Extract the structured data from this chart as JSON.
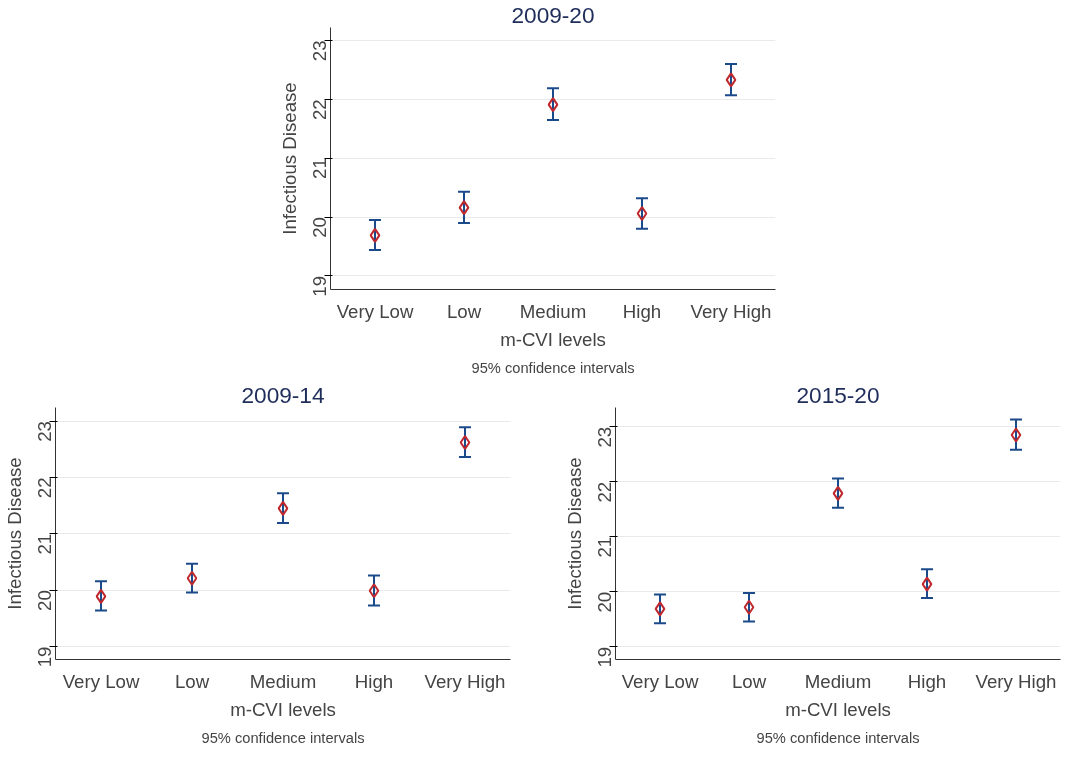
{
  "chart_data": [
    {
      "type": "scatter",
      "title": "2009-20",
      "xlabel": "m-CVI levels",
      "ylabel": "Infectious Disease",
      "annotations": [
        "95% confidence intervals"
      ],
      "categories": [
        "Very Low",
        "Low",
        "Medium",
        "High",
        "Very High"
      ],
      "ylim": [
        18.77,
        23.22
      ],
      "yticks": [
        19,
        20,
        21,
        22,
        23
      ],
      "grid": "y",
      "marker": "diamond",
      "series": [
        {
          "color": "#c0282d",
          "values": [
            19.69,
            20.16,
            21.91,
            20.06,
            22.33
          ],
          "errors": [
            [
              19.44,
              19.95
            ],
            [
              19.9,
              20.43
            ],
            [
              21.65,
              22.19
            ],
            [
              19.8,
              20.32
            ],
            [
              22.07,
              22.6
            ]
          ]
        }
      ]
    },
    {
      "type": "scatter",
      "title": "2009-14",
      "xlabel": "m-CVI levels",
      "ylabel": "Infectious Disease",
      "annotations": [
        "95% confidence intervals"
      ],
      "categories": [
        "Very Low",
        "Low",
        "Medium",
        "High",
        "Very High"
      ],
      "ylim": [
        18.77,
        23.24
      ],
      "yticks": [
        19,
        20,
        21,
        22,
        23
      ],
      "grid": "y",
      "marker": "diamond",
      "series": [
        {
          "color": "#c0282d",
          "values": [
            19.89,
            20.21,
            21.45,
            19.99,
            22.62
          ],
          "errors": [
            [
              19.64,
              20.16
            ],
            [
              19.96,
              20.47
            ],
            [
              21.19,
              21.72
            ],
            [
              19.73,
              20.26
            ],
            [
              22.36,
              22.89
            ]
          ]
        }
      ]
    },
    {
      "type": "scatter",
      "title": "2015-20",
      "xlabel": "m-CVI levels",
      "ylabel": "Infectious Disease",
      "annotations": [
        "95% confidence intervals"
      ],
      "categories": [
        "Very Low",
        "Low",
        "Medium",
        "High",
        "Very High"
      ],
      "ylim": [
        18.77,
        23.35
      ],
      "yticks": [
        19,
        20,
        21,
        22,
        23
      ],
      "grid": "y",
      "marker": "diamond",
      "series": [
        {
          "color": "#c0282d",
          "values": [
            19.69,
            19.72,
            21.79,
            20.14,
            22.85
          ],
          "errors": [
            [
              19.43,
              19.95
            ],
            [
              19.46,
              19.98
            ],
            [
              21.53,
              22.06
            ],
            [
              19.89,
              20.41
            ],
            [
              22.58,
              23.13
            ]
          ]
        }
      ]
    }
  ]
}
